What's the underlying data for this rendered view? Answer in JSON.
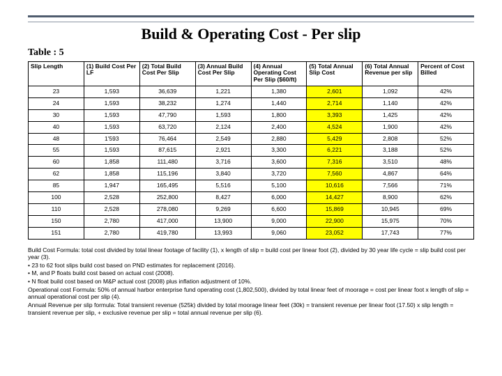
{
  "title": "Build & Operating Cost - Per slip",
  "table_label": "Table : 5",
  "colors": {
    "highlight": "#ffff00",
    "rule_dark": "#4f5c6e",
    "rule_light": "#8b94a3"
  },
  "columns": [
    "Slip Length",
    "(1) Build Cost Per LF",
    "(2) Total Build Cost Per Slip",
    "(3) Annual Build Cost Per Slip",
    "(4) Annual Operating Cost Per Slip ($60/ft)",
    "(5) Total Annual Slip Cost",
    "(6) Total Annual Revenue per slip",
    "Percent of Cost Billed"
  ],
  "highlight_column_index": 5,
  "rows": [
    [
      "23",
      "1,593",
      "36,639",
      "1,221",
      "1,380",
      "2,601",
      "1,092",
      "42%"
    ],
    [
      "24",
      "1,593",
      "38,232",
      "1,274",
      "1,440",
      "2,714",
      "1,140",
      "42%"
    ],
    [
      "30",
      "1,593",
      "47,790",
      "1,593",
      "1,800",
      "3,393",
      "1,425",
      "42%"
    ],
    [
      "40",
      "1,593",
      "63,720",
      "2,124",
      "2,400",
      "4,524",
      "1,900",
      "42%"
    ],
    [
      "48",
      "1'593",
      "76,464",
      "2,549",
      "2,880",
      "5,429",
      "2,808",
      "52%"
    ],
    [
      "55",
      "1,593",
      "87,615",
      "2,921",
      "3,300",
      "6,221",
      "3,188",
      "52%"
    ],
    [
      "60",
      "1,858",
      "111,480",
      "3,716",
      "3,600",
      "7,316",
      "3,510",
      "48%"
    ],
    [
      "62",
      "1,858",
      "115,196",
      "3,840",
      "3,720",
      "7,560",
      "4,867",
      "64%"
    ],
    [
      "85",
      "1,947",
      "165,495",
      "5,516",
      "5,100",
      "10,616",
      "7,566",
      "71%"
    ],
    [
      "100",
      "2,528",
      "252,800",
      "8,427",
      "6,000",
      "14,427",
      "8,900",
      "62%"
    ],
    [
      "110",
      "2,528",
      "278,080",
      "9,269",
      "6,600",
      "15,869",
      "10,945",
      "69%"
    ],
    [
      "150",
      "2,780",
      "417,000",
      "13,900",
      "9,000",
      "22,900",
      "15,975",
      "70%"
    ],
    [
      "151",
      "2,780",
      "419,780",
      "13,993",
      "9,060",
      "23,052",
      "17,743",
      "77%"
    ]
  ],
  "notes": [
    "Build Cost Formula: total cost divided by total linear footage of facility (1), x length of slip = build cost per linear foot (2), divided by 30 year life cycle = slip build cost per year (3).",
    "• 23 to 62 foot slips build cost based on PND estimates for replacement (2016).",
    "• M, and P floats build cost based on actual cost (2008).",
    "• N float build cost based on M&P actual cost (2008) plus inflation adjustment of 10%.",
    "Operational cost Formula: 50% of annual harbor enterprise fund operating cost (1,802,500), divided by total linear feet of moorage = cost per linear foot x length of slip = annual operational cost per slip (4).",
    "Annual Revenue per slip formula: Total transient revenue (525k) divided by total moorage linear feet (30k) = transient revenue per linear foot (17.50) x slip length = transient revenue per slip, + exclusive revenue per slip = total annual revenue per slip (6)."
  ]
}
